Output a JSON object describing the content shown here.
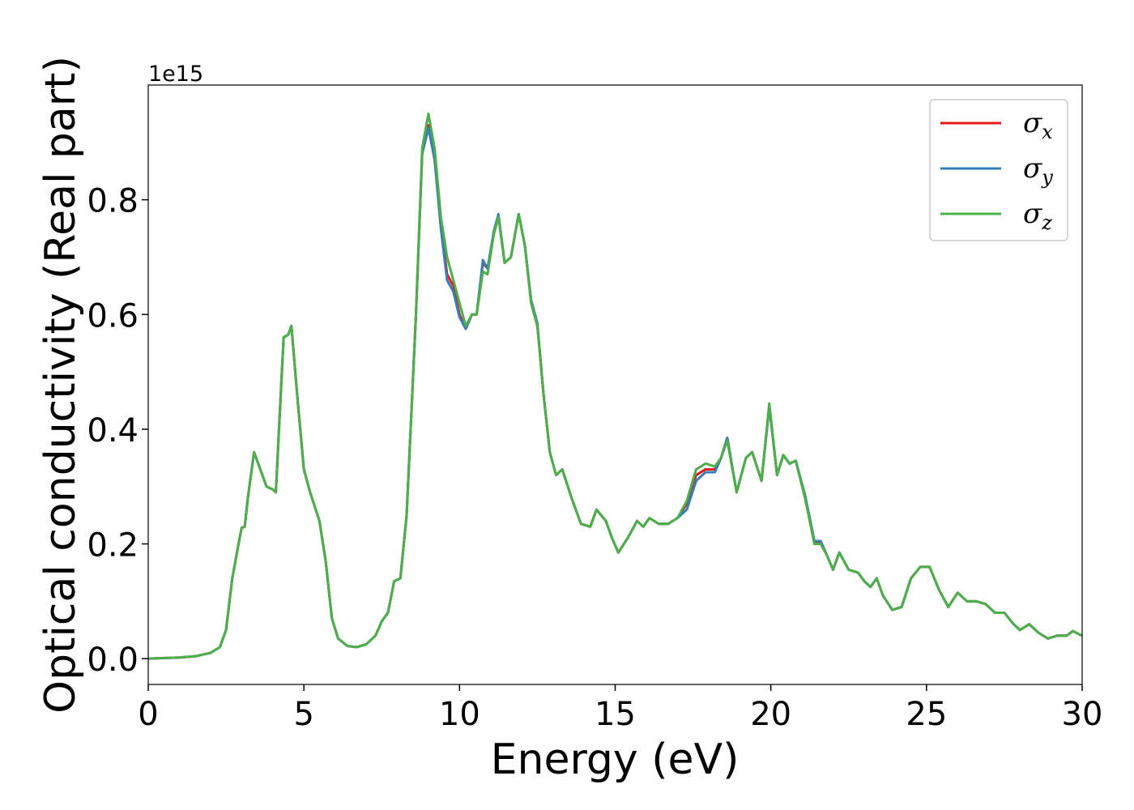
{
  "chart_data": {
    "type": "line",
    "xlabel": "Energy (eV)",
    "ylabel": "Optical conductivity (Real part)",
    "y_offset_label": "1e15",
    "xlim": [
      0,
      30
    ],
    "ylim": [
      -0.045,
      1.0
    ],
    "xticks": [
      0,
      5,
      10,
      15,
      20,
      25,
      30
    ],
    "yticks": [
      {
        "value": 0,
        "label": "0.0"
      },
      0.2,
      0.4,
      0.6,
      0.8
    ],
    "legend": "upper right",
    "grid": false,
    "x": [
      0,
      1,
      1.5,
      2,
      2.3,
      2.5,
      2.7,
      2.9,
      3.0,
      3.1,
      3.2,
      3.4,
      3.6,
      3.8,
      4.0,
      4.1,
      4.2,
      4.35,
      4.5,
      4.6,
      4.8,
      5.0,
      5.2,
      5.5,
      5.7,
      5.9,
      6.1,
      6.4,
      6.7,
      7.0,
      7.3,
      7.5,
      7.7,
      7.9,
      8.1,
      8.3,
      8.6,
      8.8,
      9.0,
      9.2,
      9.4,
      9.6,
      9.8,
      10.0,
      10.2,
      10.4,
      10.55,
      10.75,
      10.9,
      11.1,
      11.25,
      11.45,
      11.65,
      11.9,
      12.1,
      12.3,
      12.5,
      12.7,
      12.9,
      13.1,
      13.3,
      13.6,
      13.9,
      14.2,
      14.4,
      14.7,
      14.9,
      15.1,
      15.4,
      15.7,
      15.9,
      16.1,
      16.4,
      16.7,
      17.0,
      17.3,
      17.6,
      17.9,
      18.2,
      18.4,
      18.6,
      18.9,
      19.2,
      19.4,
      19.7,
      19.95,
      20.2,
      20.4,
      20.6,
      20.8,
      21.1,
      21.4,
      21.6,
      21.8,
      22.0,
      22.2,
      22.5,
      22.8,
      23.0,
      23.2,
      23.4,
      23.6,
      23.9,
      24.2,
      24.5,
      24.8,
      25.1,
      25.4,
      25.7,
      26.0,
      26.3,
      26.6,
      26.9,
      27.2,
      27.5,
      27.8,
      28.0,
      28.3,
      28.6,
      28.9,
      29.2,
      29.5,
      29.7,
      30.0
    ],
    "series": [
      {
        "name": "σx",
        "color": "#e41a1c",
        "values": [
          0,
          0.002,
          0.004,
          0.01,
          0.02,
          0.05,
          0.14,
          0.2,
          0.228,
          0.23,
          0.28,
          0.36,
          0.33,
          0.3,
          0.295,
          0.29,
          0.4,
          0.56,
          0.565,
          0.58,
          0.45,
          0.33,
          0.29,
          0.24,
          0.17,
          0.07,
          0.035,
          0.022,
          0.02,
          0.025,
          0.04,
          0.065,
          0.08,
          0.135,
          0.14,
          0.25,
          0.6,
          0.88,
          0.93,
          0.87,
          0.76,
          0.67,
          0.65,
          0.6,
          0.575,
          0.6,
          0.6,
          0.69,
          0.68,
          0.74,
          0.77,
          0.69,
          0.7,
          0.775,
          0.72,
          0.62,
          0.58,
          0.46,
          0.36,
          0.32,
          0.33,
          0.28,
          0.235,
          0.23,
          0.26,
          0.24,
          0.21,
          0.185,
          0.21,
          0.24,
          0.23,
          0.245,
          0.235,
          0.235,
          0.245,
          0.27,
          0.32,
          0.33,
          0.33,
          0.35,
          0.385,
          0.29,
          0.35,
          0.36,
          0.31,
          0.44,
          0.32,
          0.355,
          0.34,
          0.345,
          0.28,
          0.2,
          0.205,
          0.18,
          0.155,
          0.185,
          0.155,
          0.15,
          0.135,
          0.125,
          0.14,
          0.11,
          0.085,
          0.09,
          0.14,
          0.16,
          0.16,
          0.12,
          0.09,
          0.115,
          0.1,
          0.1,
          0.095,
          0.08,
          0.08,
          0.06,
          0.05,
          0.06,
          0.045,
          0.035,
          0.04,
          0.04,
          0.048,
          0.04
        ]
      },
      {
        "name": "σy",
        "color": "#377eb8",
        "values": [
          0,
          0.002,
          0.004,
          0.01,
          0.02,
          0.05,
          0.14,
          0.2,
          0.228,
          0.23,
          0.28,
          0.36,
          0.33,
          0.3,
          0.295,
          0.29,
          0.4,
          0.56,
          0.565,
          0.58,
          0.45,
          0.33,
          0.29,
          0.24,
          0.17,
          0.07,
          0.035,
          0.022,
          0.02,
          0.025,
          0.04,
          0.065,
          0.08,
          0.135,
          0.14,
          0.25,
          0.6,
          0.88,
          0.925,
          0.87,
          0.75,
          0.66,
          0.64,
          0.595,
          0.575,
          0.6,
          0.6,
          0.695,
          0.68,
          0.745,
          0.775,
          0.69,
          0.7,
          0.775,
          0.72,
          0.625,
          0.585,
          0.46,
          0.36,
          0.32,
          0.33,
          0.28,
          0.235,
          0.23,
          0.26,
          0.24,
          0.21,
          0.185,
          0.21,
          0.24,
          0.23,
          0.245,
          0.235,
          0.235,
          0.245,
          0.26,
          0.31,
          0.325,
          0.325,
          0.35,
          0.385,
          0.29,
          0.35,
          0.36,
          0.31,
          0.44,
          0.32,
          0.355,
          0.34,
          0.345,
          0.285,
          0.205,
          0.205,
          0.18,
          0.155,
          0.185,
          0.155,
          0.15,
          0.135,
          0.125,
          0.14,
          0.11,
          0.085,
          0.09,
          0.14,
          0.16,
          0.16,
          0.12,
          0.09,
          0.115,
          0.1,
          0.1,
          0.095,
          0.08,
          0.08,
          0.06,
          0.05,
          0.06,
          0.045,
          0.035,
          0.04,
          0.04,
          0.048,
          0.04
        ]
      },
      {
        "name": "σz",
        "color": "#4daf4a",
        "values": [
          0,
          0.002,
          0.004,
          0.01,
          0.02,
          0.05,
          0.14,
          0.2,
          0.228,
          0.23,
          0.28,
          0.36,
          0.33,
          0.3,
          0.295,
          0.29,
          0.4,
          0.56,
          0.565,
          0.58,
          0.45,
          0.33,
          0.29,
          0.24,
          0.17,
          0.07,
          0.035,
          0.022,
          0.02,
          0.025,
          0.04,
          0.065,
          0.08,
          0.135,
          0.14,
          0.25,
          0.6,
          0.89,
          0.95,
          0.89,
          0.77,
          0.7,
          0.66,
          0.62,
          0.58,
          0.6,
          0.6,
          0.675,
          0.67,
          0.74,
          0.77,
          0.69,
          0.7,
          0.775,
          0.72,
          0.62,
          0.58,
          0.46,
          0.36,
          0.32,
          0.33,
          0.28,
          0.235,
          0.23,
          0.26,
          0.24,
          0.21,
          0.185,
          0.21,
          0.24,
          0.23,
          0.245,
          0.235,
          0.235,
          0.245,
          0.275,
          0.33,
          0.34,
          0.335,
          0.35,
          0.38,
          0.29,
          0.35,
          0.36,
          0.31,
          0.445,
          0.32,
          0.355,
          0.34,
          0.345,
          0.28,
          0.2,
          0.2,
          0.18,
          0.155,
          0.185,
          0.155,
          0.15,
          0.135,
          0.125,
          0.14,
          0.11,
          0.085,
          0.09,
          0.14,
          0.16,
          0.16,
          0.12,
          0.09,
          0.115,
          0.1,
          0.1,
          0.095,
          0.08,
          0.08,
          0.06,
          0.05,
          0.06,
          0.045,
          0.035,
          0.04,
          0.04,
          0.048,
          0.04
        ]
      }
    ]
  }
}
